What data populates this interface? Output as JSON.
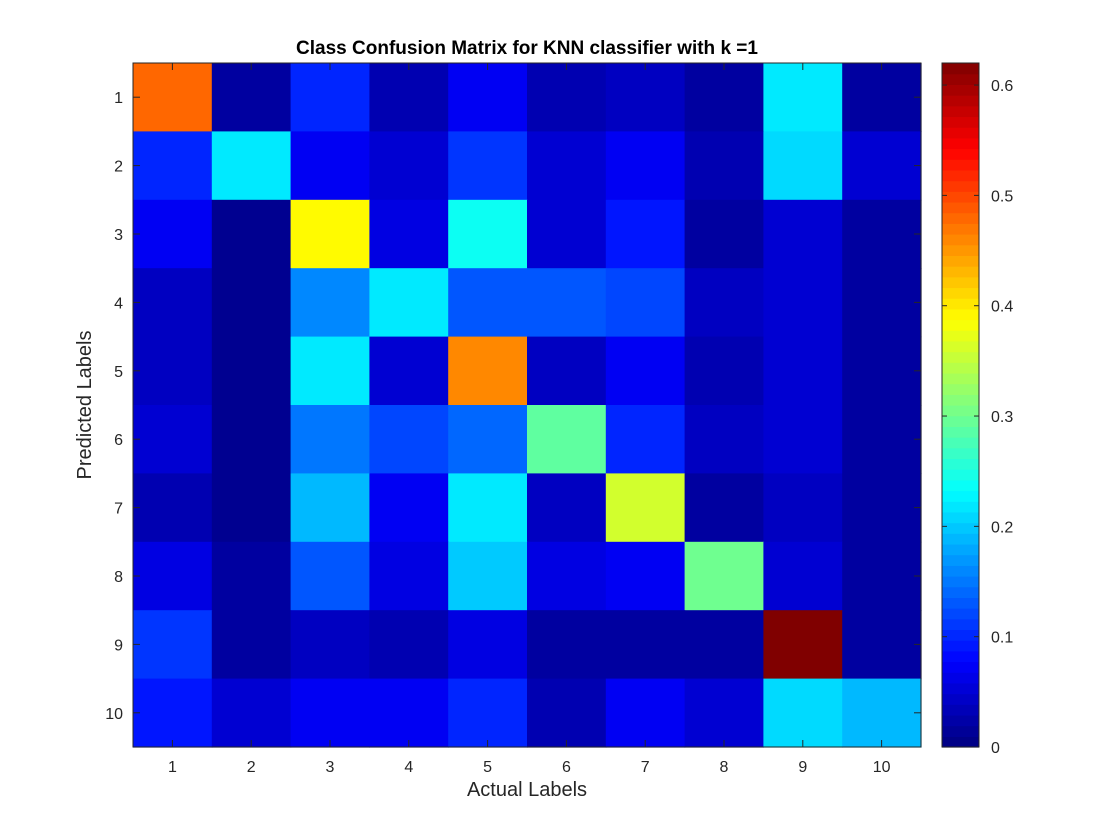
{
  "chart_data": {
    "type": "heatmap",
    "title": "Class Confusion Matrix for KNN classifier with k =1",
    "xlabel": "Actual Labels",
    "ylabel": "Predicted Labels",
    "x_categories": [
      "1",
      "2",
      "3",
      "4",
      "5",
      "6",
      "7",
      "8",
      "9",
      "10"
    ],
    "y_categories": [
      "1",
      "2",
      "3",
      "4",
      "5",
      "6",
      "7",
      "8",
      "9",
      "10"
    ],
    "values": [
      [
        0.48,
        0.02,
        0.1,
        0.03,
        0.07,
        0.03,
        0.04,
        0.02,
        0.22,
        0.02
      ],
      [
        0.1,
        0.22,
        0.07,
        0.05,
        0.11,
        0.05,
        0.07,
        0.03,
        0.21,
        0.05
      ],
      [
        0.07,
        0.01,
        0.39,
        0.06,
        0.24,
        0.05,
        0.09,
        0.02,
        0.05,
        0.02
      ],
      [
        0.04,
        0.01,
        0.16,
        0.22,
        0.13,
        0.13,
        0.12,
        0.04,
        0.05,
        0.02
      ],
      [
        0.04,
        0.01,
        0.22,
        0.05,
        0.46,
        0.04,
        0.07,
        0.03,
        0.05,
        0.02
      ],
      [
        0.05,
        0.01,
        0.15,
        0.12,
        0.14,
        0.29,
        0.1,
        0.04,
        0.05,
        0.02
      ],
      [
        0.03,
        0.01,
        0.19,
        0.07,
        0.22,
        0.04,
        0.36,
        0.02,
        0.04,
        0.02
      ],
      [
        0.06,
        0.02,
        0.13,
        0.06,
        0.2,
        0.06,
        0.07,
        0.3,
        0.05,
        0.02
      ],
      [
        0.11,
        0.02,
        0.04,
        0.03,
        0.06,
        0.02,
        0.02,
        0.02,
        0.62,
        0.02
      ],
      [
        0.09,
        0.05,
        0.07,
        0.07,
        0.1,
        0.03,
        0.07,
        0.05,
        0.21,
        0.19
      ]
    ],
    "colormap": "jet",
    "clim": [
      0,
      0.62
    ],
    "colorbar_ticks": [
      "0",
      "0.1",
      "0.2",
      "0.3",
      "0.4",
      "0.5",
      "0.6"
    ],
    "colorbar_tick_values": [
      0,
      0.1,
      0.2,
      0.3,
      0.4,
      0.5,
      0.6
    ],
    "colorbar_location": "right",
    "grid": false
  }
}
